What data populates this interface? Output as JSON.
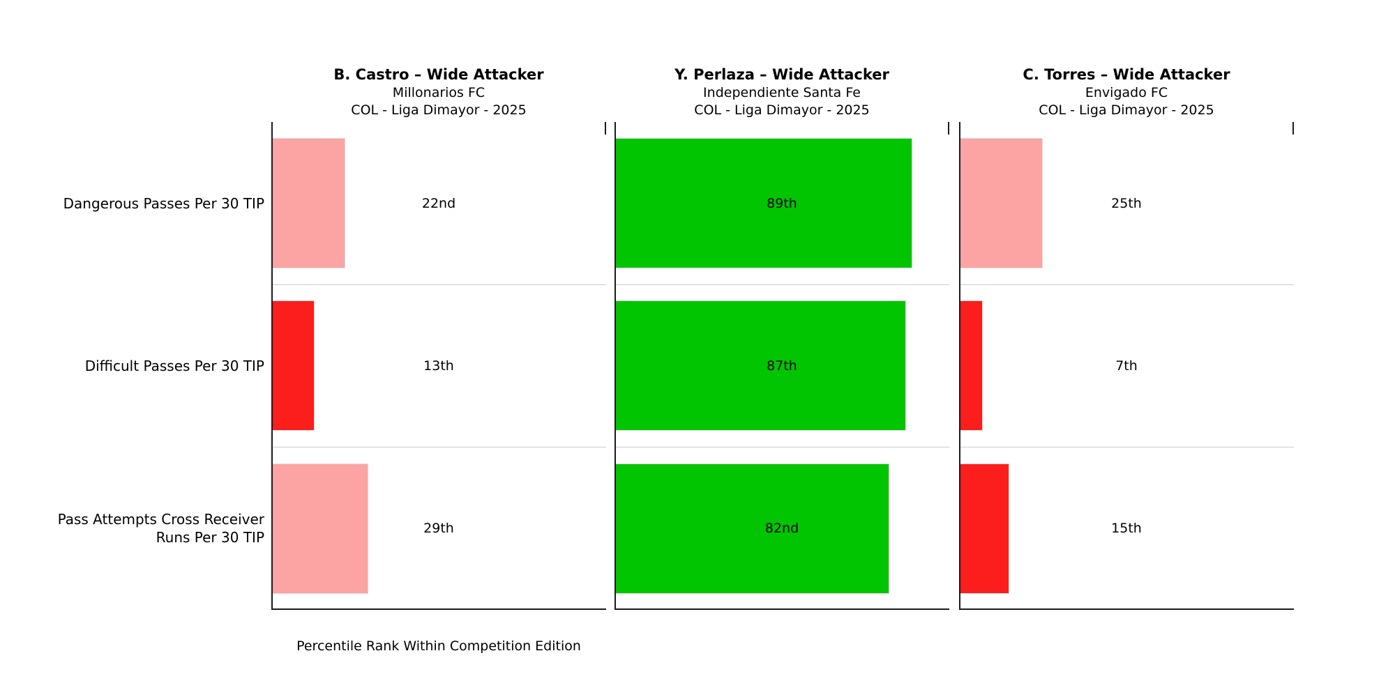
{
  "chart_data": {
    "type": "bar",
    "orientation": "horizontal",
    "title": "",
    "xlabel": "Percentile Rank Within Competition Edition",
    "xlim": [
      0,
      100
    ],
    "grid": "row separators only",
    "legend": "none",
    "categories": [
      "Dangerous Passes Per 30 TIP",
      "Difficult Passes Per 30 TIP",
      "Pass Attempts Cross Receiver\nRuns Per 30 TIP"
    ],
    "panels": [
      {
        "title": "B. Castro – Wide Attacker",
        "team": "Millonarios FC",
        "competition": "COL - Liga Dimayor - 2025",
        "values": [
          22,
          13,
          29
        ],
        "labels": [
          "22nd",
          "13th",
          "29th"
        ],
        "colors": [
          "#FCA3A3",
          "#FC1D1D",
          "#FCA3A3"
        ]
      },
      {
        "title": "Y. Perlaza – Wide Attacker",
        "team": "Independiente Santa Fe",
        "competition": "COL - Liga Dimayor - 2025",
        "values": [
          89,
          87,
          82
        ],
        "labels": [
          "89th",
          "87th",
          "82nd"
        ],
        "colors": [
          "#00C500",
          "#00C500",
          "#00C500"
        ]
      },
      {
        "title": "C. Torres – Wide Attacker",
        "team": "Envigado FC",
        "competition": "COL - Liga Dimayor - 2025",
        "values": [
          25,
          7,
          15
        ],
        "labels": [
          "25th",
          "7th",
          "15th"
        ],
        "colors": [
          "#FCA3A3",
          "#FC1D1D",
          "#FC1D1D"
        ]
      }
    ]
  },
  "style_colors": {
    "good_green": "#00C500",
    "bad_red": "#FC1D1D",
    "below_avg_pink": "#FCA3A3",
    "separator_gray": "#cccccc",
    "spine_black": "#1a1a1a",
    "background": "#ffffff"
  }
}
